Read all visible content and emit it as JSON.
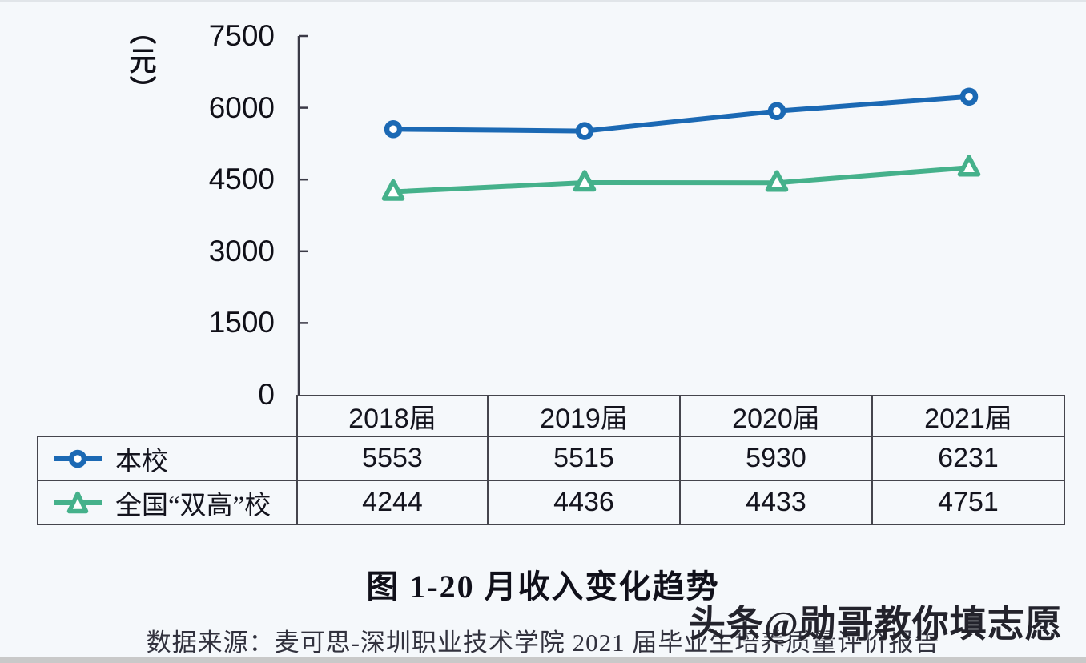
{
  "page": {
    "title": "图 1-20 月收入变化趋势",
    "source": "数据来源：麦可思-深圳职业技术学院 2021 届毕业生培养质量评价报告",
    "watermark": "头条@勋哥教你填志愿",
    "y_axis_unit": "（元）"
  },
  "colors": {
    "series_school": "#1b69b4",
    "series_national": "#45b18b",
    "axis": "#3a3a46",
    "table_border": "#45454d",
    "text": "#1d1d27",
    "background": "#f5f8fb",
    "marker_fill": "#ffffff"
  },
  "chart_data": {
    "type": "line",
    "title": "图 1-20 月收入变化趋势",
    "unit": "元",
    "categories": [
      "2018届",
      "2019届",
      "2020届",
      "2021届"
    ],
    "series": [
      {
        "name": "本校",
        "marker": "circle",
        "color": "#1b69b4",
        "values": [
          5553,
          5515,
          5930,
          6231
        ]
      },
      {
        "name": "全国“双高”校",
        "marker": "triangle",
        "color": "#45b18b",
        "values": [
          4244,
          4436,
          4433,
          4751
        ]
      }
    ],
    "ylim": [
      0,
      7500
    ],
    "yticks": [
      0,
      1500,
      3000,
      4500,
      6000,
      7500
    ],
    "ytick_labels": [
      "0",
      "1500",
      "3000",
      "4500",
      "6000",
      "7500"
    ],
    "ylabel": "（元）",
    "xlabel": "",
    "grid": false,
    "legend_position": "table-left"
  }
}
